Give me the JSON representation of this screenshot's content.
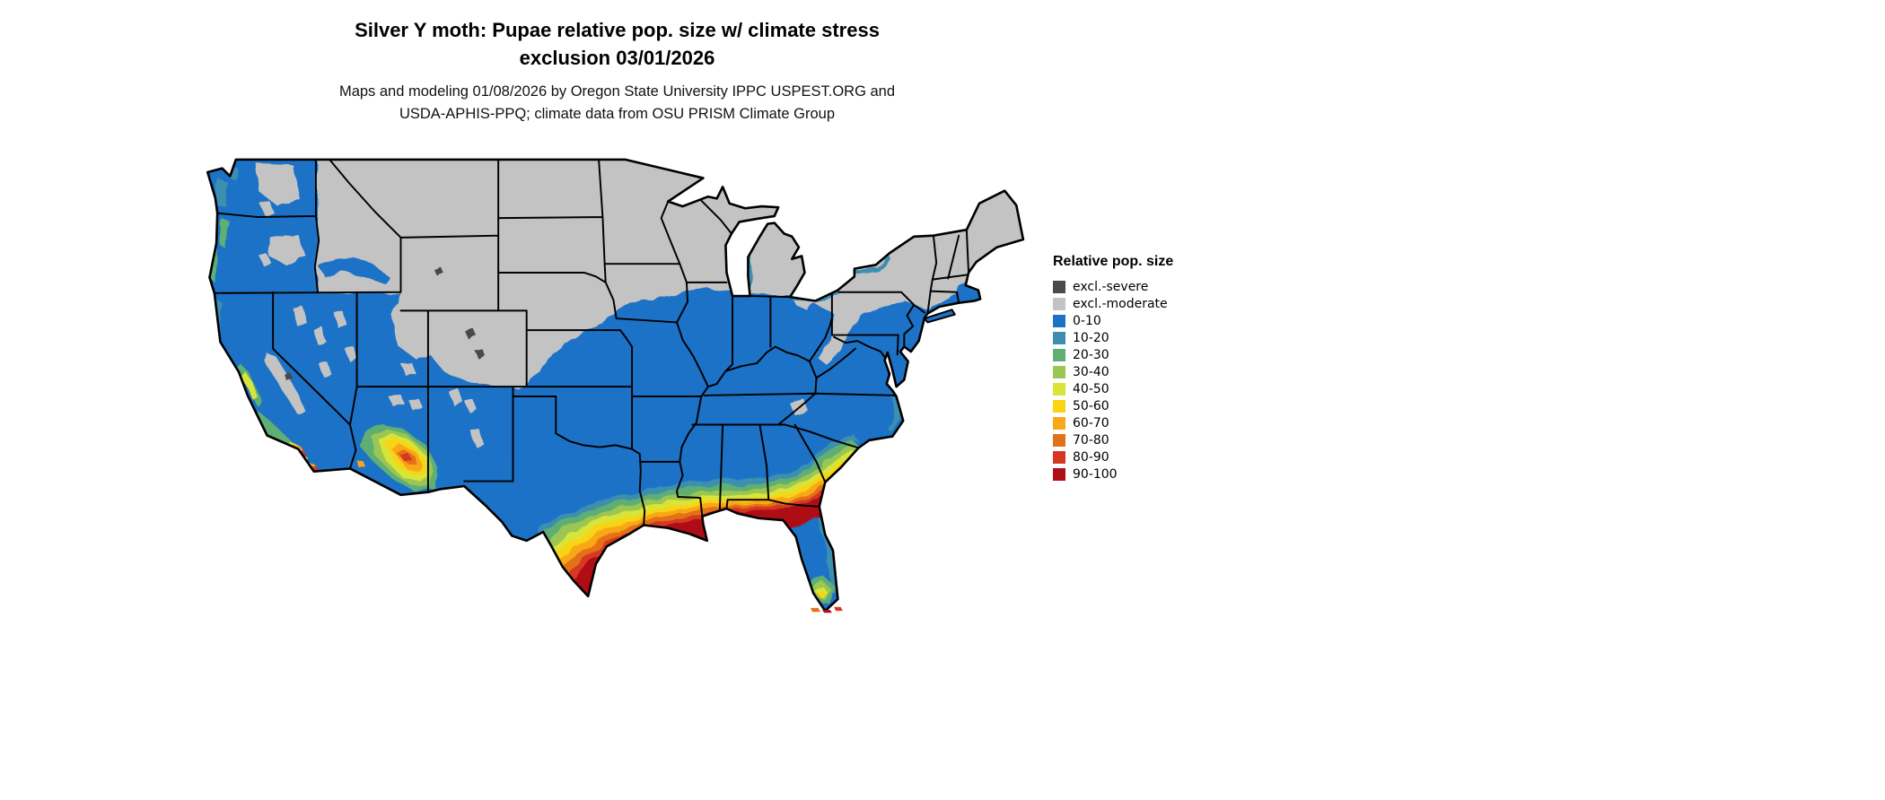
{
  "header": {
    "title_line1": "Silver Y moth: Pupae relative pop. size w/ climate stress",
    "title_line2": "exclusion 03/01/2026",
    "subtitle_line1": "Maps and modeling 01/08/2026 by Oregon State University IPPC USPEST.ORG and",
    "subtitle_line2": "USDA-APHIS-PPQ; climate data from OSU PRISM Climate Group"
  },
  "legend": {
    "title": "Relative pop. size",
    "items": [
      {
        "key": "sev",
        "label": "excl.-severe",
        "color": "#4a4a4a"
      },
      {
        "key": "mod",
        "label": "excl.-moderate",
        "color": "#c3c3c3"
      },
      {
        "key": "c0",
        "label": "0-10",
        "color": "#1c72c7"
      },
      {
        "key": "c10",
        "label": "10-20",
        "color": "#3e8faf"
      },
      {
        "key": "c20",
        "label": "20-30",
        "color": "#5fae73"
      },
      {
        "key": "c30",
        "label": "30-40",
        "color": "#9cc653"
      },
      {
        "key": "c40",
        "label": "40-50",
        "color": "#d9e437"
      },
      {
        "key": "c50",
        "label": "50-60",
        "color": "#f8d413"
      },
      {
        "key": "c60",
        "label": "60-70",
        "color": "#f8a818"
      },
      {
        "key": "c70",
        "label": "70-80",
        "color": "#e37117"
      },
      {
        "key": "c80",
        "label": "80-90",
        "color": "#d63723"
      },
      {
        "key": "c90",
        "label": "90-100",
        "color": "#af1018"
      }
    ]
  },
  "map": {
    "type": "choropleth-raster",
    "region": "Contiguous United States",
    "variable": "Relative pop. size",
    "classes": [
      "excl.-severe",
      "excl.-moderate",
      "0-10",
      "10-20",
      "20-30",
      "30-40",
      "40-50",
      "50-60",
      "60-70",
      "70-80",
      "80-90",
      "90-100"
    ]
  }
}
